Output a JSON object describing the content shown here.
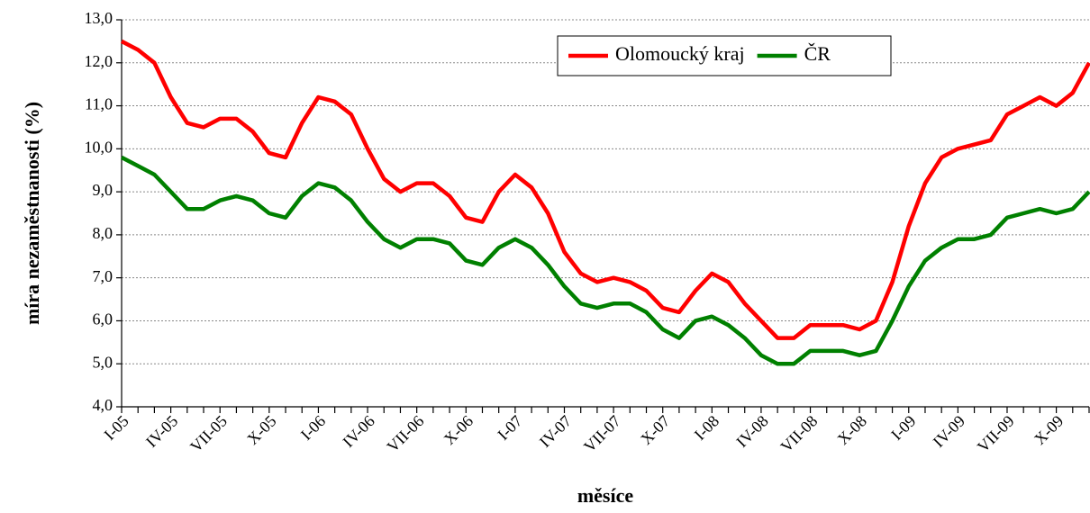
{
  "chart_data": {
    "type": "line",
    "y_label": "míra nezaměstnanosti (%)",
    "x_label": "měsíce",
    "categories": [
      "I-05",
      null,
      null,
      "IV-05",
      null,
      null,
      "VII-05",
      null,
      null,
      "X-05",
      null,
      null,
      "I-06",
      null,
      null,
      "IV-06",
      null,
      null,
      "VII-06",
      null,
      null,
      "X-06",
      null,
      null,
      "I-07",
      null,
      null,
      "IV-07",
      null,
      null,
      "VII-07",
      null,
      null,
      "X-07",
      null,
      null,
      "I-08",
      null,
      null,
      "IV-08",
      null,
      null,
      "VII-08",
      null,
      null,
      "X-08",
      null,
      null,
      "I-09",
      null,
      null,
      "IV-09",
      null,
      null,
      "VII-09",
      null,
      null,
      "X-09",
      null,
      null
    ],
    "series": [
      {
        "name": "Olomoucký kraj",
        "color": "#ff0000",
        "values": [
          12.5,
          12.3,
          12.0,
          11.2,
          10.6,
          10.5,
          10.7,
          10.7,
          10.4,
          9.9,
          9.8,
          10.6,
          11.2,
          11.1,
          10.8,
          10.0,
          9.3,
          9.0,
          9.2,
          9.2,
          8.9,
          8.4,
          8.3,
          9.0,
          9.4,
          9.1,
          8.5,
          7.6,
          7.1,
          6.9,
          7.0,
          6.9,
          6.7,
          6.3,
          6.2,
          6.7,
          7.1,
          6.9,
          6.4,
          6.0,
          5.6,
          5.6,
          5.9,
          5.9,
          5.9,
          5.8,
          6.0,
          6.9,
          8.2,
          9.2,
          9.8,
          10.0,
          10.1,
          10.2,
          10.8,
          11.0,
          11.2,
          11.0,
          11.3,
          12.0
        ]
      },
      {
        "name": "ČR",
        "color": "#008000",
        "values": [
          9.8,
          9.6,
          9.4,
          9.0,
          8.6,
          8.6,
          8.8,
          8.9,
          8.8,
          8.5,
          8.4,
          8.9,
          9.2,
          9.1,
          8.8,
          8.3,
          7.9,
          7.7,
          7.9,
          7.9,
          7.8,
          7.4,
          7.3,
          7.7,
          7.9,
          7.7,
          7.3,
          6.8,
          6.4,
          6.3,
          6.4,
          6.4,
          6.2,
          5.8,
          5.6,
          6.0,
          6.1,
          5.9,
          5.6,
          5.2,
          5.0,
          5.0,
          5.3,
          5.3,
          5.3,
          5.2,
          5.3,
          6.0,
          6.8,
          7.4,
          7.7,
          7.9,
          7.9,
          8.0,
          8.4,
          8.5,
          8.6,
          8.5,
          8.6,
          9.0
        ]
      }
    ],
    "ylim": [
      4,
      13
    ],
    "yticks": [
      {
        "value": 4,
        "label": "4,0"
      },
      {
        "value": 5,
        "label": "5,0"
      },
      {
        "value": 6,
        "label": "6,0"
      },
      {
        "value": 7,
        "label": "7,0"
      },
      {
        "value": 8,
        "label": "8,0"
      },
      {
        "value": 9,
        "label": "9,0"
      },
      {
        "value": 10,
        "label": "10,0"
      },
      {
        "value": 11,
        "label": "11,0"
      },
      {
        "value": 12,
        "label": "12,0"
      },
      {
        "value": 13,
        "label": "13,0"
      }
    ],
    "grid": true,
    "legend": "upper-right"
  }
}
